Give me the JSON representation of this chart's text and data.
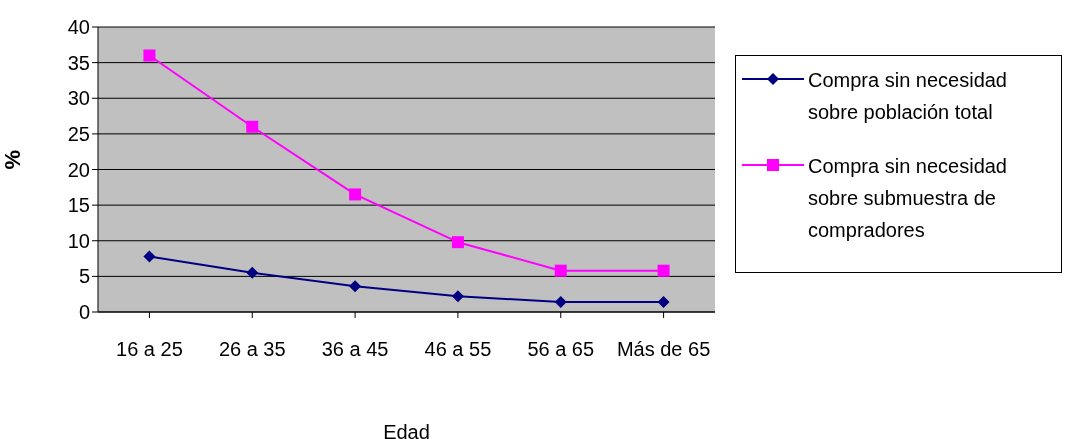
{
  "chart_data": {
    "type": "line",
    "xlabel": "Edad",
    "ylabel": "%",
    "categories": [
      "16 a 25",
      "26 a 35",
      "36 a 45",
      "46 a 55",
      "56 a 65",
      "Más de 65"
    ],
    "series": [
      {
        "name": "Compra sin necesidad sobre población total",
        "color": "#000080",
        "marker": "diamond",
        "values": [
          7.8,
          5.5,
          3.6,
          2.2,
          1.4,
          1.4
        ]
      },
      {
        "name": "Compra sin necesidad sobre submuestra de compradores",
        "color": "#ff00ff",
        "marker": "square",
        "values": [
          36,
          26,
          16.5,
          9.8,
          5.8,
          5.8
        ]
      }
    ],
    "ylim": [
      0,
      40
    ],
    "yticks": [
      0,
      5,
      10,
      15,
      20,
      25,
      30,
      35,
      40
    ],
    "grid": "y",
    "legend": "right",
    "line_style": "solid"
  }
}
